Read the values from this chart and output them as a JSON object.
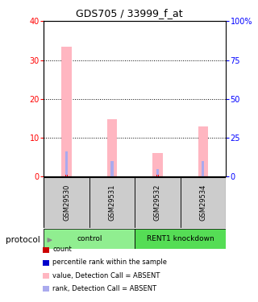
{
  "title": "GDS705 / 33999_f_at",
  "samples": [
    "GSM29530",
    "GSM29531",
    "GSM29532",
    "GSM29534"
  ],
  "ylim_left": [
    0,
    40
  ],
  "ylim_right": [
    0,
    100
  ],
  "yticks_left": [
    0,
    10,
    20,
    30,
    40
  ],
  "yticks_right": [
    0,
    25,
    50,
    75,
    100
  ],
  "bar_pink_values": [
    33.5,
    14.7,
    6.0,
    13.0
  ],
  "bar_blue_values": [
    16.0,
    9.8,
    4.8,
    9.8
  ],
  "bar_red_values": [
    0.5,
    0.5,
    0.5,
    0.5
  ],
  "bar_lb_values": [
    0.4,
    0.4,
    0.4,
    0.4
  ],
  "left_color": "#FF0000",
  "right_color": "#0000FF",
  "pink_color": "#FFB6C1",
  "lightblue_color": "#AAAAEE",
  "gray_sample": "#CCCCCC",
  "dotted_lines": [
    10,
    20,
    30
  ],
  "group_spans": [
    [
      0,
      2,
      "control",
      "#90EE90"
    ],
    [
      2,
      4,
      "RENT1 knockdown",
      "#55DD55"
    ]
  ],
  "legend_colors": [
    "#CC0000",
    "#0000CC",
    "#FFB6C1",
    "#AAAAEE"
  ],
  "legend_labels": [
    "count",
    "percentile rank within the sample",
    "value, Detection Call = ABSENT",
    "rank, Detection Call = ABSENT"
  ]
}
